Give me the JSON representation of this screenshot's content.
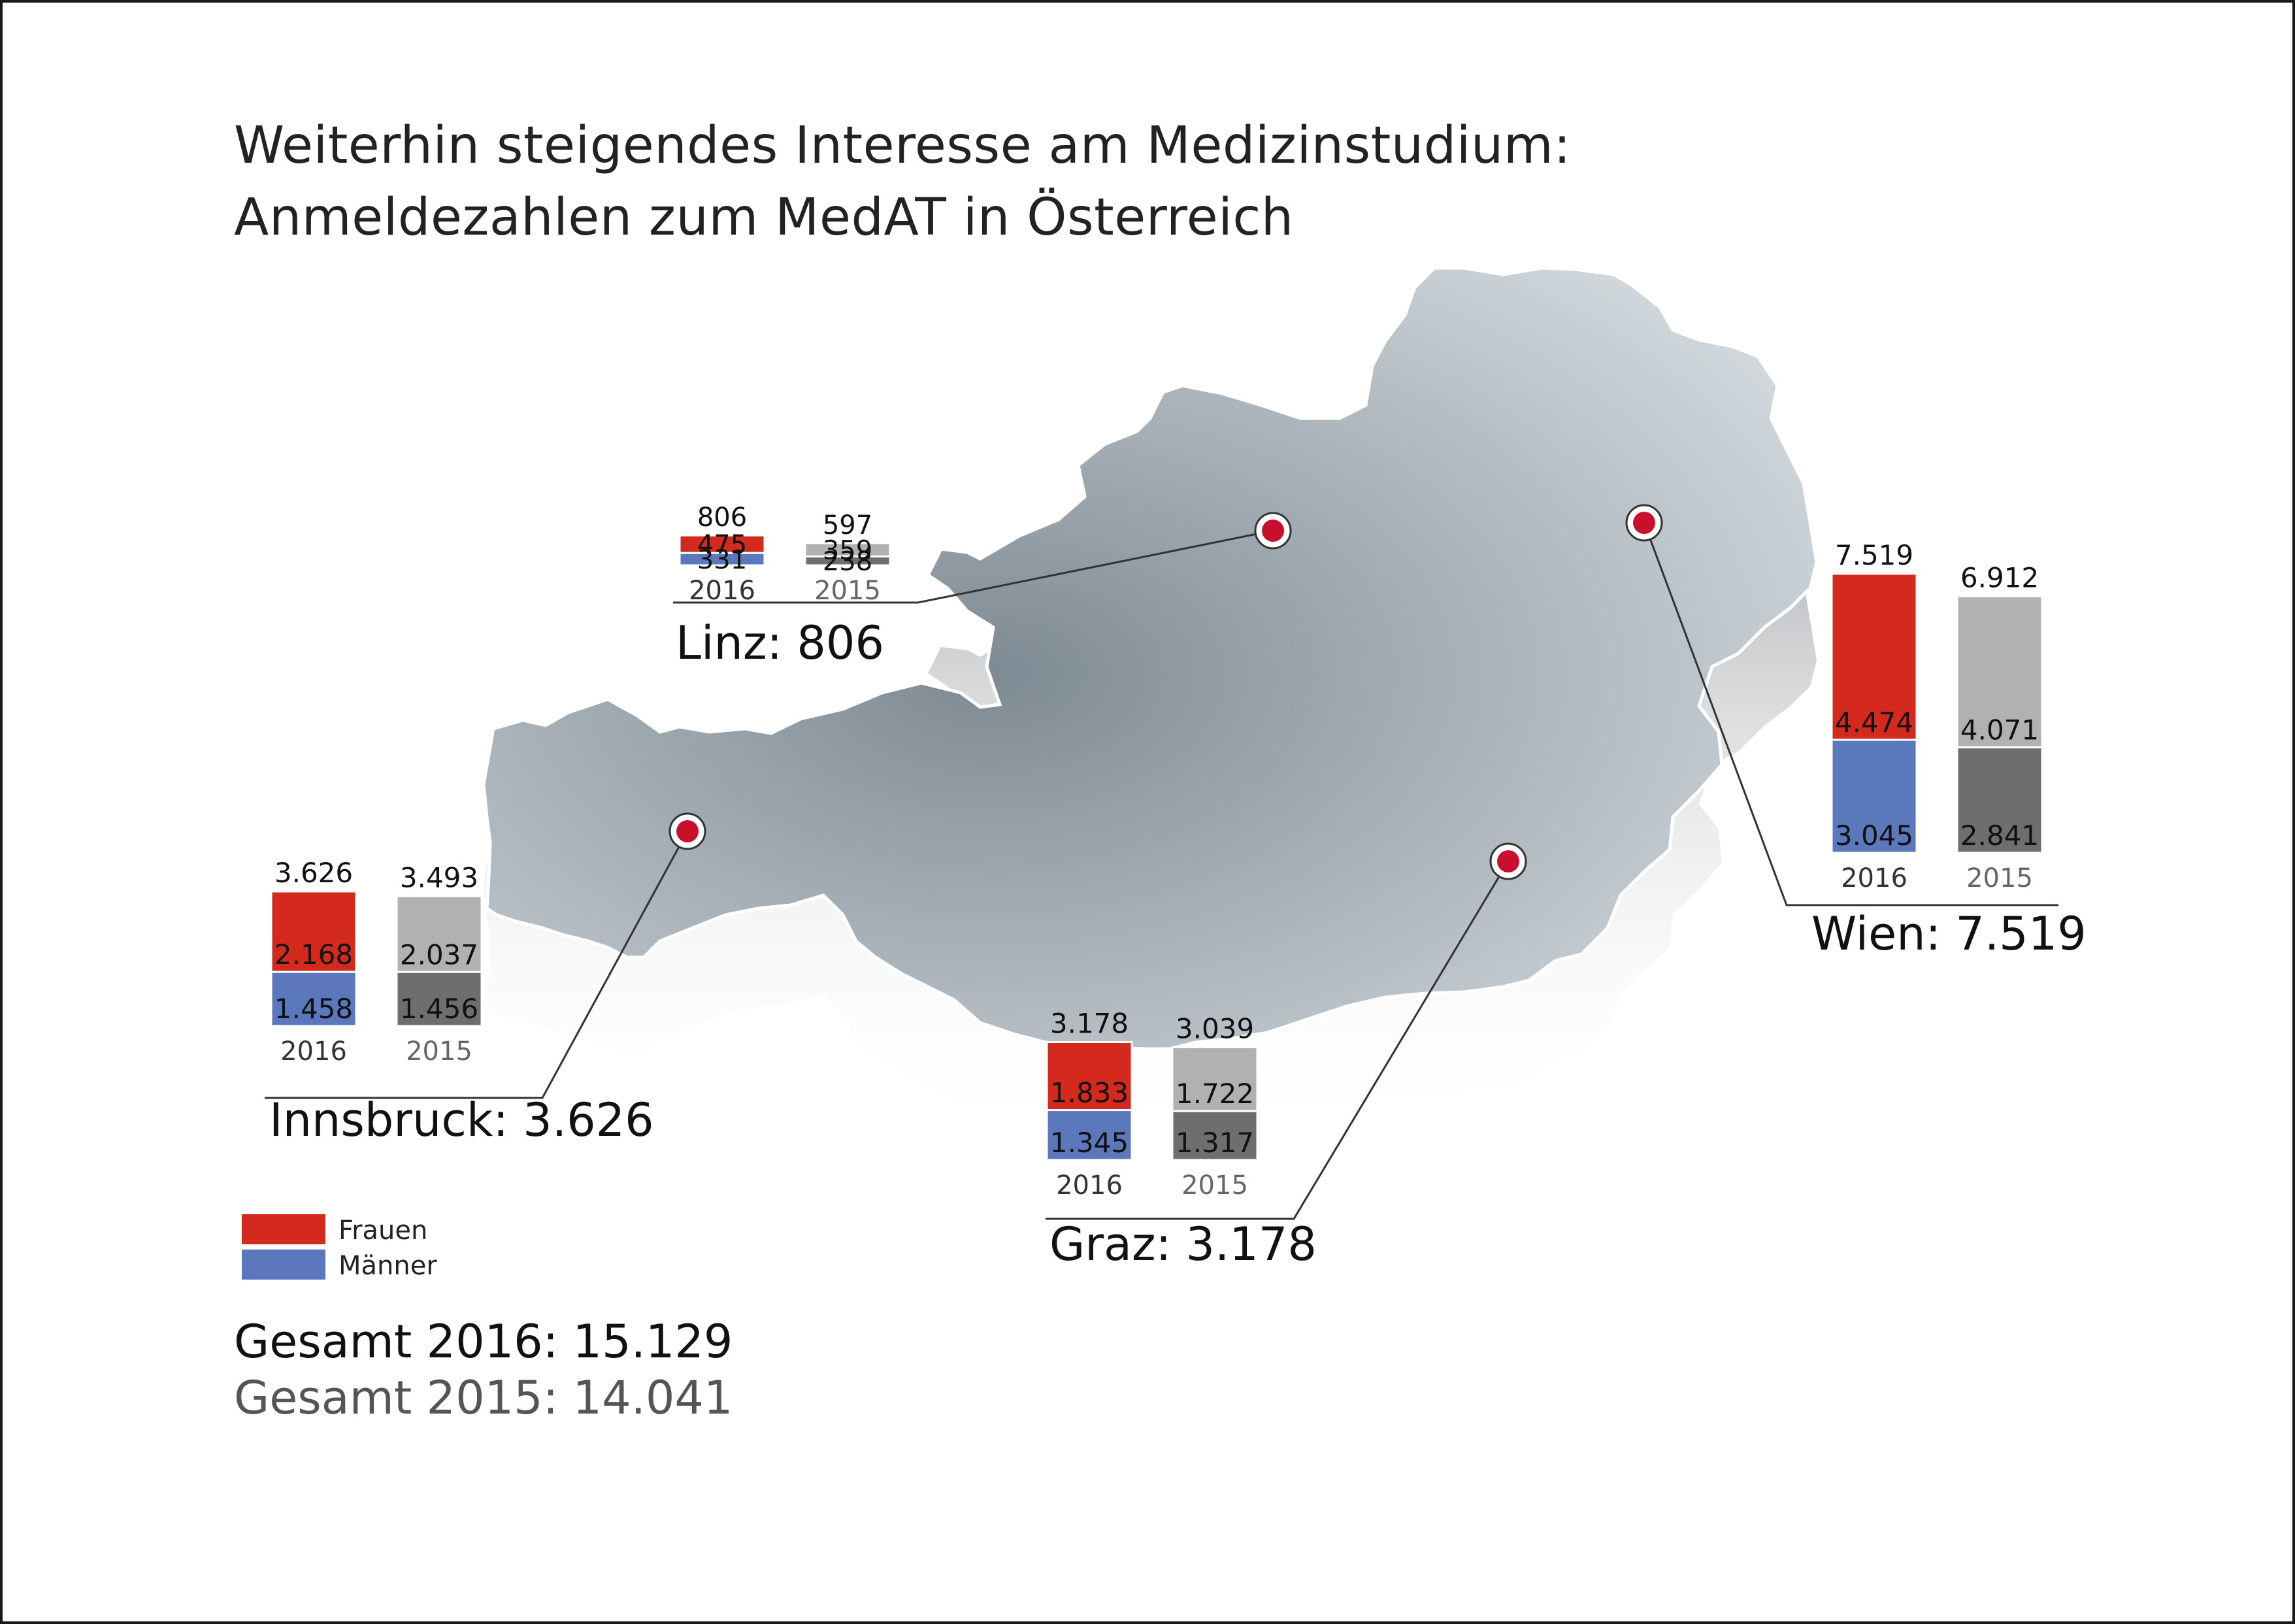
{
  "title": {
    "line1": "Weiterhin steigendes Interesse am Medizinstudium:",
    "line2": "Anmeldezahlen zum MedAT in Österreich"
  },
  "legend": [
    {
      "label": "Frauen",
      "color": "#d42a1e"
    },
    {
      "label": "Männer",
      "color": "#5b78bd"
    }
  ],
  "totals": {
    "line2016": "Gesamt 2016: 15.129",
    "line2015": "Gesamt 2015: 14.041"
  },
  "colors": {
    "frauen_2016": "#d42a1e",
    "maenner_2016": "#5b78bd",
    "frauen_2015": "#b1b1b1",
    "maenner_2015": "#6f6e6e",
    "map": "#aab3ba",
    "marker": "#c8102e"
  },
  "chart_data": {
    "type": "bar",
    "stacked": true,
    "title": "Weiterhin steigendes Interesse am Medizinstudium: Anmeldezahlen zum MedAT in Österreich",
    "series": [
      {
        "name": "Frauen",
        "year": "2016"
      },
      {
        "name": "Männer",
        "year": "2016"
      }
    ],
    "cities": [
      {
        "name": "Innsbruck",
        "label": "Innsbruck: 3.626",
        "bars": [
          {
            "year": "2016",
            "total": 3626,
            "total_label": "3.626",
            "frauen": 2168,
            "frauen_label": "2.168",
            "maenner": 1458,
            "maenner_label": "1.458"
          },
          {
            "year": "2015",
            "total": 3493,
            "total_label": "3.493",
            "frauen": 2037,
            "frauen_label": "2.037",
            "maenner": 1456,
            "maenner_label": "1.456"
          }
        ]
      },
      {
        "name": "Linz",
        "label": "Linz: 806",
        "bars": [
          {
            "year": "2016",
            "total": 806,
            "total_label": "806",
            "frauen": 475,
            "frauen_label": "475",
            "maenner": 331,
            "maenner_label": "331"
          },
          {
            "year": "2015",
            "total": 597,
            "total_label": "597",
            "frauen": 359,
            "frauen_label": "359",
            "maenner": 238,
            "maenner_label": "238"
          }
        ]
      },
      {
        "name": "Graz",
        "label": "Graz: 3.178",
        "bars": [
          {
            "year": "2016",
            "total": 3178,
            "total_label": "3.178",
            "frauen": 1833,
            "frauen_label": "1.833",
            "maenner": 1345,
            "maenner_label": "1.345"
          },
          {
            "year": "2015",
            "total": 3039,
            "total_label": "3.039",
            "frauen": 1722,
            "frauen_label": "1.722",
            "maenner": 1317,
            "maenner_label": "1.317"
          }
        ]
      },
      {
        "name": "Wien",
        "label": "Wien: 7.519",
        "bars": [
          {
            "year": "2016",
            "total": 7519,
            "total_label": "7.519",
            "frauen": 4474,
            "frauen_label": "4.474",
            "maenner": 3045,
            "maenner_label": "3.045"
          },
          {
            "year": "2015",
            "total": 6912,
            "total_label": "6.912",
            "frauen": 4071,
            "frauen_label": "4.071",
            "maenner": 2841,
            "maenner_label": "2.841"
          }
        ]
      }
    ]
  }
}
